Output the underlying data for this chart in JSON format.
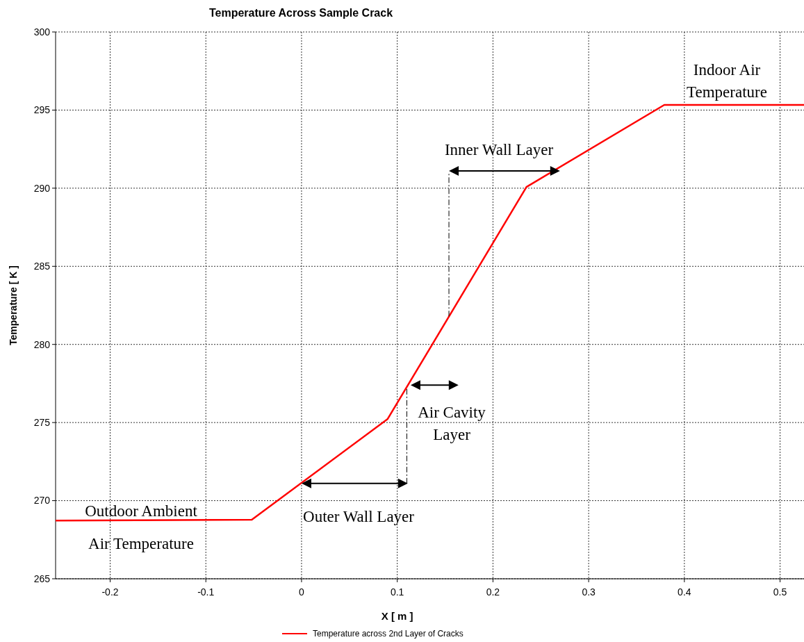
{
  "chart_data": {
    "type": "line",
    "title": "Temperature Across Sample Crack",
    "xlabel": "X [ m ]",
    "ylabel": "Temperature [ K ]",
    "x": [
      -0.257,
      -0.052,
      0.09,
      0.235,
      0.379,
      0.525
    ],
    "series": [
      {
        "name": "Temperature across 2nd Layer of Cracks",
        "color": "#ff0000",
        "values": [
          268.73,
          268.78,
          275.23,
          290.08,
          295.33,
          295.33
        ]
      }
    ],
    "xlim": [
      -0.257,
      0.525
    ],
    "xticks": [
      -0.2,
      -0.1,
      0,
      0.1,
      0.2,
      0.3,
      0.4,
      0.5
    ],
    "ylim": [
      265,
      300
    ],
    "yticks": [
      265,
      270,
      275,
      280,
      285,
      290,
      295,
      300
    ],
    "grid": true,
    "legend": "bottom",
    "line_style": "solid",
    "marker": "none",
    "annotations": [
      "Indoor Air",
      "Temperature",
      {
        "text": "Inner Wall Layer",
        "x": 0.154,
        "y": 281.8
      },
      "Air Cavity",
      "Layer",
      "Outdoor Ambient",
      "Outer Wall Layer",
      "Air Temperature"
    ]
  }
}
